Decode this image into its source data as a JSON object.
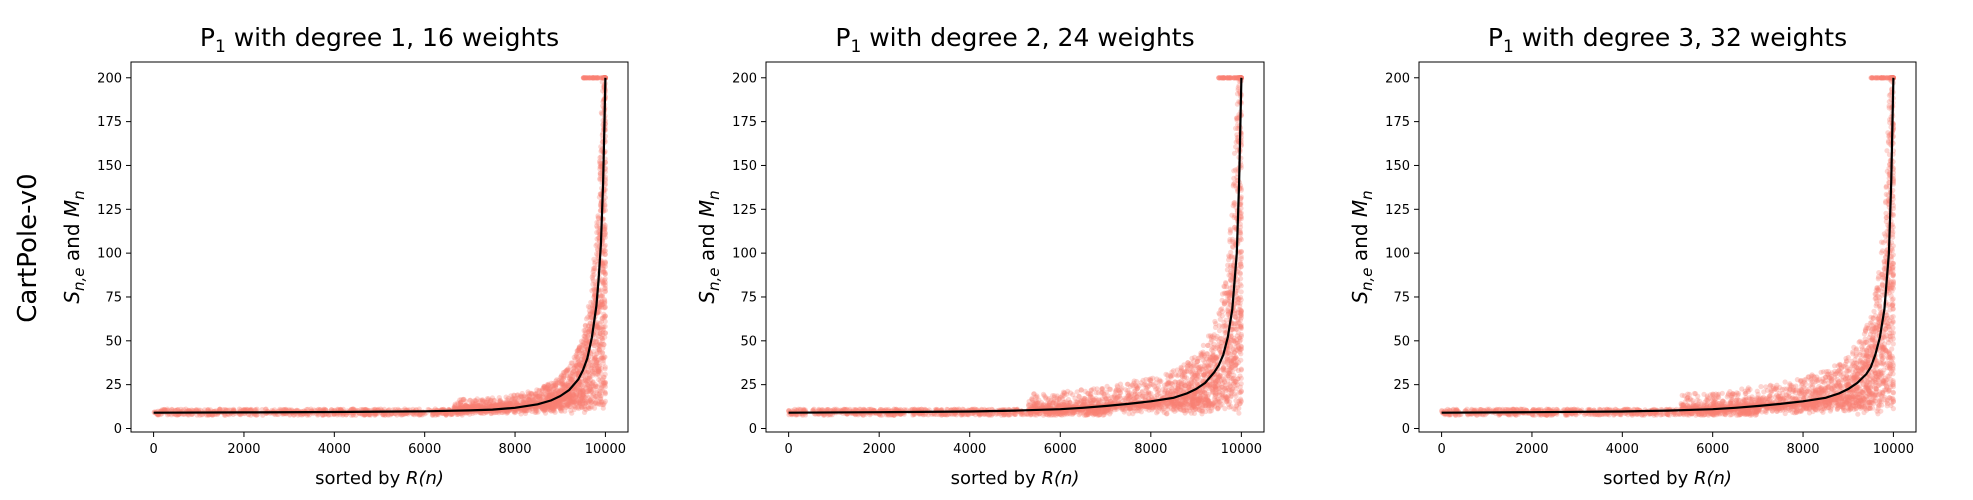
{
  "figure": {
    "row_label": "CartPole-v0"
  },
  "chart_data": [
    {
      "type": "scatter",
      "title_main": "P",
      "title_sub": "1",
      "title_rest": " with degree 1, 16 weights",
      "xlabel_prefix": "sorted by ",
      "xlabel_italic": "R(n)",
      "ylabel_main": "S",
      "ylabel_sub": "n,e",
      "ylabel_mid": " and ",
      "ylabel_main2": "M",
      "ylabel_sub2": "n",
      "xlim": [
        -500,
        10500
      ],
      "ylim": [
        -2,
        209
      ],
      "x_ticks": [
        0,
        2000,
        4000,
        6000,
        8000,
        10000
      ],
      "y_ticks": [
        0,
        25,
        50,
        75,
        100,
        125,
        150,
        175,
        200
      ],
      "mean_line": {
        "color": "#000000",
        "x": [
          0,
          2000,
          4000,
          6000,
          7000,
          7500,
          8000,
          8500,
          8800,
          9000,
          9200,
          9400,
          9500,
          9600,
          9700,
          9800,
          9850,
          9900,
          9950,
          9980,
          10000
        ],
        "y": [
          9,
          9.2,
          9.4,
          9.8,
          10.3,
          10.8,
          11.8,
          13.8,
          16,
          18.5,
          22,
          28,
          33,
          40,
          52,
          70,
          85,
          105,
          140,
          175,
          200
        ]
      },
      "scatter_color": "#fa8072",
      "scatter_spread": 1.0
    },
    {
      "type": "scatter",
      "title_main": "P",
      "title_sub": "1",
      "title_rest": " with degree 2, 24 weights",
      "xlabel_prefix": "sorted by ",
      "xlabel_italic": "R(n)",
      "ylabel_main": "S",
      "ylabel_sub": "n,e",
      "ylabel_mid": " and ",
      "ylabel_main2": "M",
      "ylabel_sub2": "n",
      "xlim": [
        -500,
        10500
      ],
      "ylim": [
        -2,
        209
      ],
      "x_ticks": [
        0,
        2000,
        4000,
        6000,
        8000,
        10000
      ],
      "y_ticks": [
        0,
        25,
        50,
        75,
        100,
        125,
        150,
        175,
        200
      ],
      "mean_line": {
        "color": "#000000",
        "x": [
          0,
          2000,
          4000,
          5000,
          6000,
          6500,
          7000,
          7500,
          8000,
          8500,
          8800,
          9000,
          9200,
          9400,
          9500,
          9600,
          9700,
          9800,
          9900,
          9950,
          10000
        ],
        "y": [
          9,
          9.3,
          9.7,
          10.2,
          11,
          11.8,
          12.8,
          14,
          15.5,
          17.5,
          20,
          22.5,
          26,
          32,
          36,
          42,
          52,
          68,
          100,
          140,
          200
        ]
      },
      "scatter_color": "#fa8072",
      "scatter_spread": 1.4
    },
    {
      "type": "scatter",
      "title_main": "P",
      "title_sub": "1",
      "title_rest": " with degree 3, 32 weights",
      "xlabel_prefix": "sorted by ",
      "xlabel_italic": "R(n)",
      "ylabel_main": "S",
      "ylabel_sub": "n,e",
      "ylabel_mid": " and ",
      "ylabel_main2": "M",
      "ylabel_sub2": "n",
      "xlim": [
        -500,
        10500
      ],
      "ylim": [
        -2,
        209
      ],
      "x_ticks": [
        0,
        2000,
        4000,
        6000,
        8000,
        10000
      ],
      "y_ticks": [
        0,
        25,
        50,
        75,
        100,
        125,
        150,
        175,
        200
      ],
      "mean_line": {
        "color": "#000000",
        "x": [
          0,
          2000,
          4000,
          5000,
          6000,
          6500,
          7000,
          7500,
          8000,
          8500,
          8800,
          9000,
          9200,
          9400,
          9500,
          9600,
          9700,
          9800,
          9900,
          9950,
          10000
        ],
        "y": [
          9,
          9.3,
          9.7,
          10.2,
          11,
          11.8,
          12.8,
          14,
          15.5,
          17.5,
          20,
          22.5,
          26,
          31,
          35,
          42,
          52,
          68,
          100,
          140,
          200
        ]
      },
      "scatter_color": "#fa8072",
      "scatter_spread": 1.4
    }
  ]
}
